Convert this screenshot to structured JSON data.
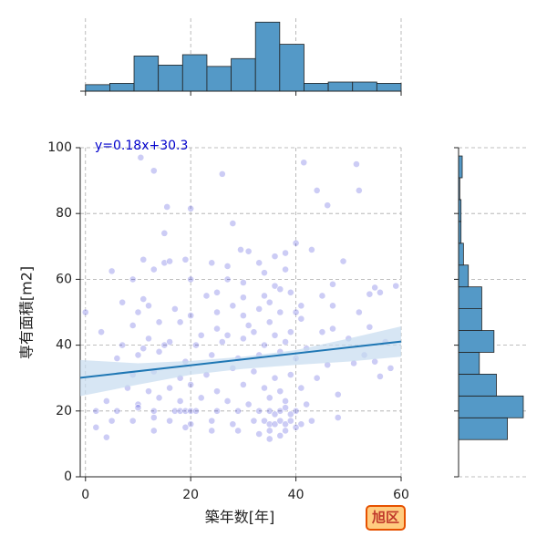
{
  "chart_data": [
    {
      "type": "scatter",
      "xlabel": "築年数[年]",
      "ylabel": "専有面積[m2]",
      "annotation": "y=0.18x+30.3",
      "badge": "旭区",
      "color": "#0000cc",
      "line_color": "#1f77b4",
      "band_color": "#c6dbef",
      "annotation_color": "#0000cc",
      "xlim": [
        -1,
        60
      ],
      "ylim": [
        0,
        100
      ],
      "xticks": [
        0,
        20,
        40,
        60
      ],
      "yticks": [
        0,
        20,
        40,
        60,
        80,
        100
      ],
      "grid": true,
      "x": [
        10.5,
        13,
        26,
        41.5,
        51.5,
        44,
        52,
        15.5,
        20,
        46,
        28,
        15,
        40,
        38,
        43,
        31,
        29.5,
        11,
        15,
        16,
        19,
        24,
        33,
        36,
        49,
        5,
        13,
        27,
        34,
        38,
        9,
        20,
        27,
        30,
        36,
        37,
        47,
        55,
        59,
        23,
        25,
        30,
        34,
        39,
        45,
        54,
        56,
        11,
        7,
        12,
        17,
        28,
        35,
        41,
        47,
        0,
        10,
        20,
        25,
        30,
        33,
        37,
        40,
        52,
        9,
        14,
        18,
        25,
        31,
        35,
        41,
        47,
        54,
        3,
        12,
        16,
        22,
        27,
        32,
        36,
        39,
        45,
        50,
        57,
        7,
        11,
        15,
        21,
        26,
        30,
        34,
        38,
        42,
        53,
        6,
        10,
        14,
        19,
        24,
        29,
        33,
        37,
        40,
        46,
        55,
        58,
        9,
        13,
        18,
        23,
        28,
        32,
        36,
        39,
        44,
        51,
        56,
        8,
        12,
        16,
        20,
        25,
        30,
        34,
        37,
        41,
        48,
        4,
        10,
        14,
        18,
        22,
        27,
        31,
        35,
        38,
        42,
        2,
        6,
        10,
        13,
        17,
        18,
        19,
        20,
        21,
        25,
        29,
        33,
        35,
        36,
        37,
        38,
        39,
        40,
        5,
        9,
        13,
        16,
        20,
        24,
        28,
        32,
        34,
        35,
        36,
        37,
        38,
        39,
        41,
        43,
        48,
        2,
        13,
        19,
        24,
        29,
        33,
        35,
        38,
        40,
        4,
        35,
        37
      ],
      "y": [
        97,
        93,
        92,
        95.5,
        95,
        87,
        87,
        82,
        81.5,
        82.5,
        77,
        74,
        71,
        68,
        69,
        68.5,
        69,
        66,
        65,
        65.5,
        66,
        65,
        65,
        67,
        65.5,
        62.5,
        63,
        64,
        62,
        63,
        60,
        60,
        60,
        59,
        58,
        57,
        58.5,
        57.5,
        58,
        55,
        56,
        54.5,
        55,
        56,
        55,
        55.5,
        56,
        54,
        53,
        52,
        51,
        52,
        53,
        52,
        52,
        50,
        50,
        49,
        50,
        49,
        51,
        50,
        50,
        50,
        46,
        47,
        47,
        45,
        46,
        47,
        48,
        45,
        45.5,
        44,
        42,
        41,
        43,
        43,
        44,
        43,
        44,
        44,
        42,
        41,
        40,
        39,
        40,
        40,
        41,
        42,
        40,
        41,
        39,
        37,
        36,
        37,
        38,
        35,
        37,
        36,
        37,
        38,
        36,
        34,
        35,
        33,
        31,
        32,
        30,
        31,
        33,
        32,
        30,
        31,
        30,
        34.5,
        30.5,
        27,
        26,
        27,
        28,
        26,
        28,
        27,
        26,
        27,
        25,
        23,
        22,
        24,
        23,
        24,
        23,
        22,
        24,
        23,
        22,
        20,
        20,
        21,
        20,
        20,
        20,
        20,
        20,
        20,
        20,
        20,
        20,
        20,
        19,
        20,
        21,
        19,
        20,
        17,
        17,
        18,
        17,
        16,
        17,
        16,
        17,
        17,
        16,
        16,
        17,
        16,
        17,
        16,
        17,
        18,
        15,
        14,
        15,
        14,
        14,
        13,
        14,
        14,
        15,
        12,
        11.5,
        12.5
      ],
      "fit": {
        "x": [
          -1,
          60
        ],
        "y": [
          30.1,
          41.1
        ]
      },
      "band": {
        "x": [
          -1,
          10,
          20,
          30,
          40,
          50,
          60
        ],
        "lower": [
          24.5,
          28,
          31,
          32.8,
          34,
          35,
          36.5
        ],
        "upper": [
          35.5,
          34.5,
          35.2,
          36.5,
          38.5,
          42,
          45.7
        ]
      }
    },
    {
      "type": "histogram",
      "orientation": "vertical",
      "color": "#5499c7",
      "bins": [
        0,
        4.62,
        9.23,
        13.85,
        18.46,
        23.08,
        27.69,
        32.31,
        36.92,
        41.54,
        46.15,
        50.77,
        55.38,
        60
      ],
      "counts": [
        5,
        6,
        27,
        20,
        28,
        19,
        25,
        53,
        36,
        6,
        7,
        7,
        6
      ],
      "xlim": [
        -1,
        60
      ],
      "ylim": [
        0,
        56
      ],
      "xticks": [
        0,
        20,
        40,
        60
      ],
      "grid": true
    },
    {
      "type": "histogram",
      "orientation": "horizontal",
      "color": "#5499c7",
      "bins": [
        11.3,
        17.93,
        24.56,
        31.19,
        37.82,
        44.45,
        51.08,
        57.71,
        64.34,
        70.97,
        77.6,
        84.23,
        90.86,
        97.49
      ],
      "counts": [
        40,
        53,
        31,
        17,
        29,
        19,
        19,
        8,
        4,
        2,
        2,
        1,
        3
      ],
      "xlim": [
        0,
        56
      ],
      "ylim": [
        0,
        100
      ],
      "yticks": [
        0,
        20,
        40,
        60,
        80,
        100
      ],
      "grid": true
    }
  ]
}
